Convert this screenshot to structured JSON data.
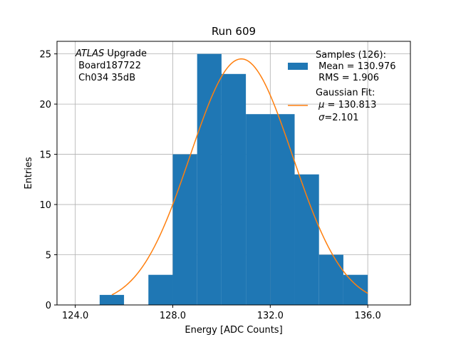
{
  "chart_data": {
    "type": "bar",
    "title": "Run 609",
    "xlabel": "Energy [ADC Counts]",
    "ylabel": "Entries",
    "xlim": [
      123.25,
      137.75
    ],
    "ylim": [
      0,
      26.25
    ],
    "xticks": [
      124,
      128,
      132,
      136
    ],
    "xtick_labels": [
      "124.0",
      "128.0",
      "132.0",
      "136.0"
    ],
    "yticks": [
      0,
      5,
      10,
      15,
      20,
      25
    ],
    "ytick_labels": [
      "0",
      "5",
      "10",
      "15",
      "20",
      "25"
    ],
    "grid": true,
    "bar_color": "#1f77b4",
    "fit_color": "#ff7f0e",
    "bins": [
      {
        "x0": 125,
        "x1": 126,
        "count": 1
      },
      {
        "x0": 126,
        "x1": 127,
        "count": 0
      },
      {
        "x0": 127,
        "x1": 128,
        "count": 3
      },
      {
        "x0": 128,
        "x1": 129,
        "count": 15
      },
      {
        "x0": 129,
        "x1": 130,
        "count": 25
      },
      {
        "x0": 130,
        "x1": 131,
        "count": 23
      },
      {
        "x0": 131,
        "x1": 132,
        "count": 19
      },
      {
        "x0": 132,
        "x1": 133,
        "count": 19
      },
      {
        "x0": 133,
        "x1": 134,
        "count": 13
      },
      {
        "x0": 134,
        "x1": 135,
        "count": 5
      },
      {
        "x0": 135,
        "x1": 136,
        "count": 3
      }
    ],
    "fit": {
      "type": "gaussian",
      "mu": 130.813,
      "sigma": 2.101,
      "amplitude": 24.5,
      "x_range": [
        125.5,
        136.0
      ]
    },
    "annotation": {
      "line1_italic": "ATLAS",
      "line1_rest": " Upgrade",
      "line2": " Board187722",
      "line3": " Ch034 35dB"
    },
    "legend": {
      "placement": "top-right",
      "samples_line1": "Samples (126):",
      "samples_line2": " Mean = 130.976",
      "samples_line3": " RMS = 1.906",
      "fit_line1": "Gaussian Fit:",
      "fit_mu_symbol": "μ",
      "fit_mu_rest": " = 130.813",
      "fit_sigma_symbol": "σ",
      "fit_sigma_rest": "=2.101"
    }
  }
}
